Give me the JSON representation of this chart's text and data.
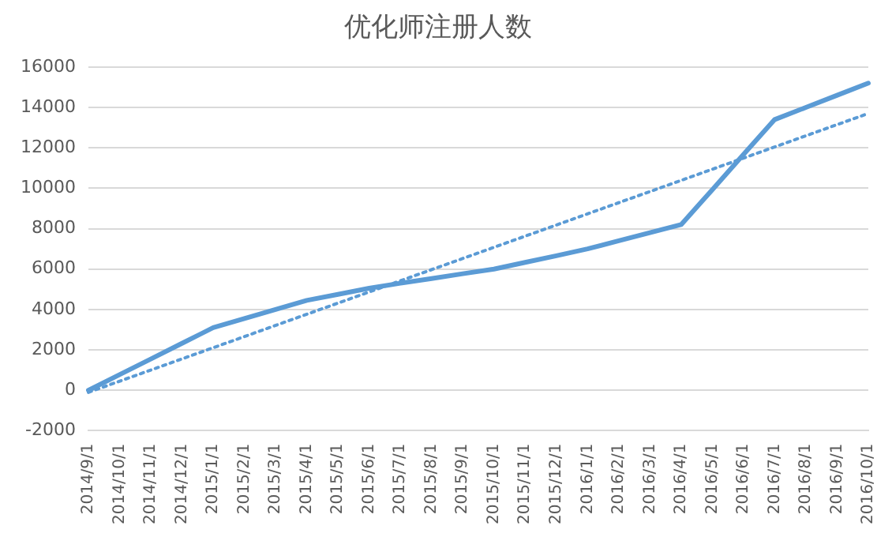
{
  "chart_data": {
    "type": "line",
    "title": "优化师注册人数",
    "categories": [
      "2014/9/1",
      "2014/10/1",
      "2014/11/1",
      "2014/12/1",
      "2015/1/1",
      "2015/2/1",
      "2015/3/1",
      "2015/4/1",
      "2015/5/1",
      "2015/6/1",
      "2015/7/1",
      "2015/8/1",
      "2015/9/1",
      "2015/10/1",
      "2015/11/1",
      "2015/12/1",
      "2016/1/1",
      "2016/2/1",
      "2016/3/1",
      "2016/4/1",
      "2016/5/1",
      "2016/6/1",
      "2016/7/1",
      "2016/8/1",
      "2016/9/1",
      "2016/10/1"
    ],
    "series": [
      {
        "color": "#5b9bd5",
        "line_style": "solid",
        "values": [
          0,
          775,
          1550,
          2325,
          3100,
          3550,
          4000,
          4450,
          4750,
          5050,
          5300,
          5530,
          5770,
          6000,
          6330,
          6660,
          7000,
          7400,
          7800,
          8200,
          9930,
          11670,
          13400,
          14000,
          14600,
          15200
        ]
      },
      {
        "type": "line",
        "color": "#5b9bd5",
        "line_style": "dotted",
        "x": [
          "2014/9/1",
          "2016/10/1"
        ],
        "values": [
          -100,
          13700
        ]
      }
    ],
    "ylim": [
      -2000,
      16000
    ],
    "yticks": [
      -2000,
      0,
      2000,
      4000,
      6000,
      8000,
      10000,
      12000,
      14000,
      16000
    ],
    "grid": "y",
    "legend": false,
    "marker": "none"
  }
}
